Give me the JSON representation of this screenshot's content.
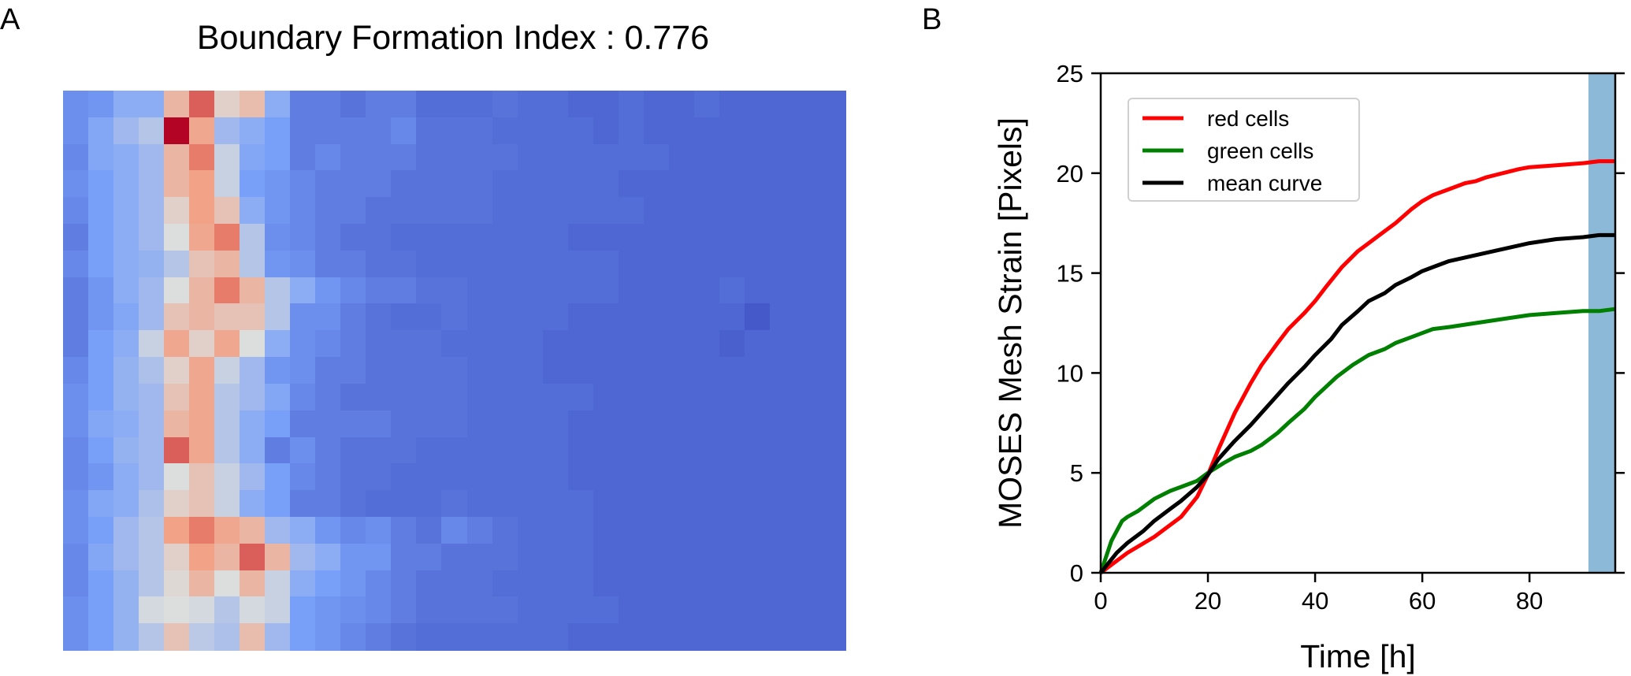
{
  "panels": {
    "a": {
      "letter": "A",
      "title": "Boundary Formation Index : 0.776"
    },
    "b": {
      "letter": "B"
    }
  },
  "chart_data": [
    {
      "type": "heatmap",
      "title": "Boundary Formation Index : 0.776",
      "color_scale": "coolwarm",
      "color_scale_range": [
        0,
        1
      ],
      "rows": 21,
      "cols": 31,
      "values": [
        [
          0.2,
          0.22,
          0.3,
          0.3,
          0.65,
          0.85,
          0.55,
          0.62,
          0.3,
          0.15,
          0.15,
          0.12,
          0.15,
          0.15,
          0.1,
          0.1,
          0.1,
          0.12,
          0.1,
          0.1,
          0.08,
          0.08,
          0.1,
          0.08,
          0.08,
          0.1,
          0.08,
          0.08,
          0.08,
          0.08,
          0.08
        ],
        [
          0.2,
          0.28,
          0.35,
          0.4,
          1.0,
          0.7,
          0.35,
          0.3,
          0.25,
          0.15,
          0.15,
          0.15,
          0.15,
          0.18,
          0.12,
          0.12,
          0.12,
          0.1,
          0.1,
          0.1,
          0.1,
          0.08,
          0.1,
          0.08,
          0.08,
          0.08,
          0.08,
          0.08,
          0.08,
          0.08,
          0.08
        ],
        [
          0.18,
          0.28,
          0.3,
          0.35,
          0.65,
          0.8,
          0.45,
          0.28,
          0.25,
          0.15,
          0.18,
          0.15,
          0.15,
          0.15,
          0.12,
          0.12,
          0.12,
          0.12,
          0.1,
          0.1,
          0.1,
          0.1,
          0.1,
          0.1,
          0.08,
          0.08,
          0.08,
          0.08,
          0.08,
          0.08,
          0.08
        ],
        [
          0.2,
          0.25,
          0.3,
          0.35,
          0.65,
          0.72,
          0.45,
          0.25,
          0.22,
          0.18,
          0.15,
          0.15,
          0.15,
          0.12,
          0.12,
          0.12,
          0.12,
          0.1,
          0.1,
          0.1,
          0.1,
          0.1,
          0.08,
          0.08,
          0.08,
          0.08,
          0.08,
          0.08,
          0.08,
          0.08,
          0.08
        ],
        [
          0.18,
          0.25,
          0.3,
          0.35,
          0.55,
          0.72,
          0.6,
          0.3,
          0.22,
          0.18,
          0.15,
          0.15,
          0.12,
          0.12,
          0.12,
          0.12,
          0.12,
          0.1,
          0.1,
          0.1,
          0.1,
          0.1,
          0.1,
          0.08,
          0.08,
          0.08,
          0.08,
          0.08,
          0.08,
          0.08,
          0.08
        ],
        [
          0.15,
          0.25,
          0.3,
          0.35,
          0.5,
          0.7,
          0.8,
          0.4,
          0.2,
          0.18,
          0.15,
          0.12,
          0.12,
          0.1,
          0.1,
          0.1,
          0.1,
          0.1,
          0.1,
          0.1,
          0.08,
          0.08,
          0.08,
          0.08,
          0.08,
          0.08,
          0.08,
          0.08,
          0.08,
          0.08,
          0.08
        ],
        [
          0.18,
          0.25,
          0.3,
          0.32,
          0.4,
          0.6,
          0.65,
          0.4,
          0.22,
          0.2,
          0.15,
          0.15,
          0.12,
          0.12,
          0.1,
          0.1,
          0.1,
          0.1,
          0.1,
          0.1,
          0.1,
          0.1,
          0.08,
          0.08,
          0.08,
          0.08,
          0.08,
          0.08,
          0.08,
          0.08,
          0.08
        ],
        [
          0.15,
          0.22,
          0.3,
          0.35,
          0.5,
          0.65,
          0.8,
          0.65,
          0.4,
          0.3,
          0.22,
          0.18,
          0.15,
          0.15,
          0.12,
          0.12,
          0.1,
          0.1,
          0.1,
          0.1,
          0.1,
          0.1,
          0.08,
          0.08,
          0.08,
          0.08,
          0.1,
          0.08,
          0.08,
          0.08,
          0.08
        ],
        [
          0.15,
          0.22,
          0.28,
          0.35,
          0.6,
          0.65,
          0.6,
          0.6,
          0.4,
          0.2,
          0.2,
          0.15,
          0.12,
          0.1,
          0.1,
          0.12,
          0.1,
          0.1,
          0.1,
          0.1,
          0.08,
          0.08,
          0.08,
          0.08,
          0.08,
          0.08,
          0.08,
          0.04,
          0.08,
          0.08,
          0.08
        ],
        [
          0.15,
          0.25,
          0.3,
          0.45,
          0.7,
          0.55,
          0.7,
          0.5,
          0.3,
          0.2,
          0.18,
          0.15,
          0.12,
          0.12,
          0.12,
          0.1,
          0.1,
          0.1,
          0.1,
          0.08,
          0.08,
          0.08,
          0.08,
          0.08,
          0.08,
          0.08,
          0.06,
          0.08,
          0.08,
          0.08,
          0.08
        ],
        [
          0.18,
          0.25,
          0.32,
          0.38,
          0.55,
          0.7,
          0.45,
          0.35,
          0.22,
          0.2,
          0.15,
          0.15,
          0.12,
          0.12,
          0.12,
          0.12,
          0.1,
          0.1,
          0.1,
          0.08,
          0.08,
          0.08,
          0.08,
          0.08,
          0.08,
          0.08,
          0.08,
          0.08,
          0.08,
          0.08,
          0.08
        ],
        [
          0.2,
          0.25,
          0.32,
          0.35,
          0.6,
          0.7,
          0.4,
          0.35,
          0.28,
          0.18,
          0.15,
          0.12,
          0.12,
          0.12,
          0.12,
          0.12,
          0.1,
          0.1,
          0.1,
          0.1,
          0.1,
          0.08,
          0.08,
          0.08,
          0.08,
          0.08,
          0.08,
          0.08,
          0.08,
          0.08,
          0.08
        ],
        [
          0.2,
          0.28,
          0.3,
          0.35,
          0.65,
          0.7,
          0.4,
          0.3,
          0.25,
          0.15,
          0.15,
          0.15,
          0.15,
          0.12,
          0.12,
          0.12,
          0.1,
          0.1,
          0.1,
          0.1,
          0.08,
          0.08,
          0.08,
          0.08,
          0.08,
          0.08,
          0.08,
          0.08,
          0.08,
          0.08,
          0.08
        ],
        [
          0.18,
          0.25,
          0.32,
          0.35,
          0.85,
          0.7,
          0.4,
          0.3,
          0.15,
          0.2,
          0.15,
          0.12,
          0.12,
          0.12,
          0.1,
          0.1,
          0.1,
          0.1,
          0.1,
          0.1,
          0.08,
          0.08,
          0.08,
          0.08,
          0.08,
          0.08,
          0.08,
          0.08,
          0.08,
          0.08,
          0.08
        ],
        [
          0.18,
          0.22,
          0.3,
          0.35,
          0.5,
          0.6,
          0.45,
          0.35,
          0.25,
          0.18,
          0.15,
          0.12,
          0.12,
          0.1,
          0.1,
          0.1,
          0.1,
          0.1,
          0.1,
          0.1,
          0.08,
          0.08,
          0.08,
          0.08,
          0.08,
          0.08,
          0.08,
          0.08,
          0.08,
          0.08,
          0.08
        ],
        [
          0.2,
          0.28,
          0.3,
          0.38,
          0.55,
          0.6,
          0.45,
          0.3,
          0.25,
          0.15,
          0.15,
          0.12,
          0.1,
          0.1,
          0.1,
          0.12,
          0.1,
          0.1,
          0.1,
          0.1,
          0.1,
          0.08,
          0.08,
          0.08,
          0.08,
          0.08,
          0.08,
          0.08,
          0.08,
          0.08,
          0.08
        ],
        [
          0.2,
          0.25,
          0.35,
          0.4,
          0.72,
          0.8,
          0.7,
          0.65,
          0.35,
          0.3,
          0.22,
          0.18,
          0.2,
          0.15,
          0.12,
          0.18,
          0.15,
          0.12,
          0.1,
          0.1,
          0.1,
          0.08,
          0.08,
          0.08,
          0.08,
          0.08,
          0.08,
          0.08,
          0.08,
          0.08,
          0.08
        ],
        [
          0.18,
          0.28,
          0.35,
          0.4,
          0.55,
          0.72,
          0.65,
          0.85,
          0.65,
          0.35,
          0.3,
          0.22,
          0.22,
          0.15,
          0.15,
          0.12,
          0.12,
          0.12,
          0.1,
          0.1,
          0.1,
          0.08,
          0.08,
          0.08,
          0.08,
          0.08,
          0.08,
          0.08,
          0.08,
          0.08,
          0.08
        ],
        [
          0.18,
          0.25,
          0.32,
          0.4,
          0.52,
          0.65,
          0.5,
          0.65,
          0.45,
          0.3,
          0.25,
          0.22,
          0.18,
          0.15,
          0.12,
          0.12,
          0.12,
          0.1,
          0.1,
          0.1,
          0.1,
          0.08,
          0.08,
          0.08,
          0.08,
          0.08,
          0.08,
          0.08,
          0.08,
          0.08,
          0.08
        ],
        [
          0.2,
          0.25,
          0.32,
          0.48,
          0.5,
          0.48,
          0.4,
          0.48,
          0.45,
          0.25,
          0.22,
          0.2,
          0.18,
          0.15,
          0.12,
          0.12,
          0.12,
          0.12,
          0.1,
          0.1,
          0.1,
          0.1,
          0.08,
          0.08,
          0.08,
          0.08,
          0.08,
          0.08,
          0.08,
          0.08,
          0.08
        ],
        [
          0.2,
          0.25,
          0.32,
          0.4,
          0.6,
          0.42,
          0.38,
          0.62,
          0.35,
          0.25,
          0.22,
          0.18,
          0.15,
          0.12,
          0.1,
          0.1,
          0.1,
          0.1,
          0.1,
          0.1,
          0.08,
          0.08,
          0.08,
          0.08,
          0.08,
          0.08,
          0.08,
          0.08,
          0.08,
          0.08,
          0.08
        ]
      ]
    },
    {
      "type": "line",
      "xlabel": "Time [h]",
      "ylabel": "MOSES Mesh Strain [Pixels]",
      "xlim": [
        0,
        96
      ],
      "ylim": [
        0,
        25
      ],
      "xticks": [
        0,
        20,
        40,
        60,
        80
      ],
      "yticks": [
        0,
        5,
        10,
        15,
        20,
        25
      ],
      "legend_position": "top-left",
      "shaded_region": {
        "x": [
          91,
          96
        ],
        "color": "#8db9d8"
      },
      "series": [
        {
          "name": "red cells",
          "color": "#ff0000",
          "x": [
            0,
            5,
            10,
            15,
            18,
            20,
            22,
            25,
            28,
            30,
            33,
            35,
            38,
            40,
            42,
            45,
            48,
            50,
            52,
            55,
            58,
            60,
            62,
            65,
            68,
            70,
            72,
            75,
            78,
            80,
            85,
            90,
            93,
            96
          ],
          "y": [
            0,
            1.0,
            1.8,
            2.8,
            3.8,
            4.9,
            6.2,
            8.0,
            9.5,
            10.4,
            11.5,
            12.2,
            13.0,
            13.6,
            14.3,
            15.3,
            16.1,
            16.5,
            16.9,
            17.5,
            18.2,
            18.6,
            18.9,
            19.2,
            19.5,
            19.6,
            19.8,
            20.0,
            20.2,
            20.3,
            20.4,
            20.5,
            20.6,
            20.6
          ]
        },
        {
          "name": "green cells",
          "color": "#008000",
          "x": [
            0,
            2,
            4,
            5,
            7,
            10,
            13,
            15,
            17,
            18,
            20,
            23,
            25,
            28,
            30,
            33,
            35,
            38,
            40,
            42,
            44,
            47,
            50,
            53,
            55,
            58,
            60,
            62,
            65,
            70,
            75,
            80,
            85,
            90,
            93,
            96
          ],
          "y": [
            0,
            1.6,
            2.6,
            2.8,
            3.1,
            3.7,
            4.1,
            4.3,
            4.5,
            4.6,
            5.0,
            5.5,
            5.8,
            6.1,
            6.4,
            7.0,
            7.5,
            8.2,
            8.8,
            9.3,
            9.8,
            10.4,
            10.9,
            11.2,
            11.5,
            11.8,
            12.0,
            12.2,
            12.3,
            12.5,
            12.7,
            12.9,
            13.0,
            13.1,
            13.1,
            13.2
          ]
        },
        {
          "name": "mean curve",
          "color": "#000000",
          "x": [
            0,
            3,
            5,
            8,
            10,
            13,
            15,
            18,
            20,
            22,
            25,
            28,
            30,
            33,
            35,
            38,
            40,
            43,
            45,
            48,
            50,
            53,
            55,
            58,
            60,
            62,
            65,
            70,
            75,
            80,
            85,
            90,
            93,
            96
          ],
          "y": [
            0,
            1.0,
            1.5,
            2.1,
            2.6,
            3.2,
            3.6,
            4.3,
            4.9,
            5.7,
            6.6,
            7.4,
            8.0,
            8.9,
            9.5,
            10.3,
            10.9,
            11.7,
            12.4,
            13.1,
            13.6,
            14.0,
            14.4,
            14.8,
            15.1,
            15.3,
            15.6,
            15.9,
            16.2,
            16.5,
            16.7,
            16.8,
            16.9,
            16.9
          ]
        }
      ]
    }
  ]
}
